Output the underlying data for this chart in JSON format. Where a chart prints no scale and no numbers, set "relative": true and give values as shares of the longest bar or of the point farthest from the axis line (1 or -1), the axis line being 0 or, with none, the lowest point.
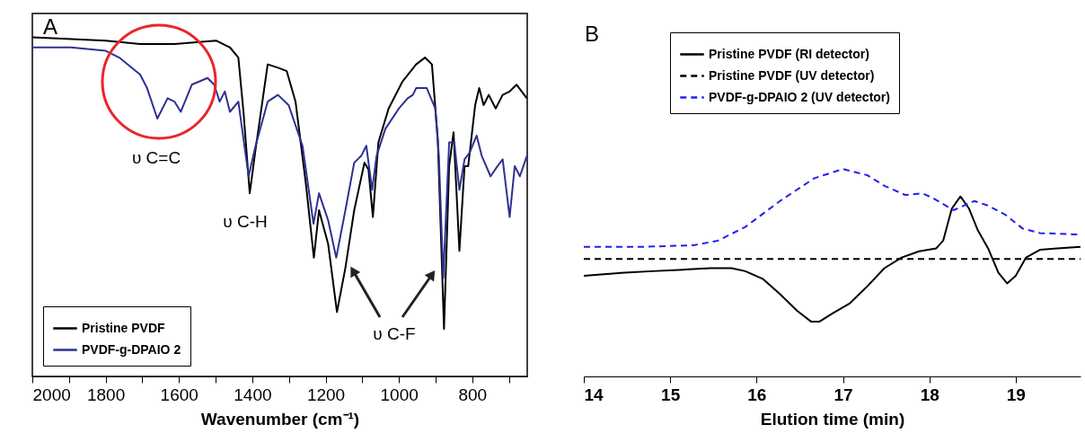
{
  "chart_data": [
    {
      "type": "line",
      "relative": true,
      "xlabel": "Wavenumber (cm⁻¹)",
      "xlim": [
        2000,
        650
      ],
      "xticks": [
        2000,
        {
          "value": 1900,
          "label": null
        },
        1800,
        {
          "value": 1700,
          "label": null
        },
        1600,
        {
          "value": 1500,
          "label": null
        },
        1400,
        {
          "value": 1300,
          "label": null
        },
        1200,
        {
          "value": 1100,
          "label": null
        },
        1000,
        {
          "value": 900,
          "label": null
        },
        800,
        {
          "value": 700,
          "label": null
        }
      ],
      "legend": "bottom left",
      "series": [
        {
          "name": "Pristine PVDF",
          "color": "#000000",
          "line_style": "solid",
          "x": [
            2000,
            1800,
            1706,
            1612,
            1499,
            1461,
            1438,
            1424,
            1407,
            1391,
            1358,
            1330,
            1306,
            1282,
            1254,
            1232,
            1218,
            1193,
            1169,
            1146,
            1122,
            1094,
            1083,
            1071,
            1056,
            1028,
            990,
            953,
            929,
            910,
            894,
            877,
            863,
            851,
            835,
            821,
            811,
            792,
            781,
            769,
            755,
            736,
            717,
            698,
            679,
            651
          ],
          "values": [
            1.0,
            0.99,
            0.98,
            0.98,
            0.99,
            0.97,
            0.94,
            0.78,
            0.54,
            0.67,
            0.92,
            0.91,
            0.9,
            0.81,
            0.57,
            0.35,
            0.49,
            0.39,
            0.19,
            0.32,
            0.49,
            0.63,
            0.61,
            0.47,
            0.69,
            0.79,
            0.87,
            0.92,
            0.94,
            0.92,
            0.7,
            0.14,
            0.62,
            0.72,
            0.37,
            0.62,
            0.62,
            0.8,
            0.85,
            0.8,
            0.83,
            0.79,
            0.83,
            0.84,
            0.86,
            0.82
          ]
        },
        {
          "name": "PVDF-g-DPAIO 2",
          "color": "#2e3192",
          "line_style": "solid",
          "x": [
            2000,
            1895,
            1800,
            1763,
            1706,
            1687,
            1659,
            1631,
            1612,
            1595,
            1565,
            1522,
            1504,
            1489,
            1475,
            1461,
            1438,
            1424,
            1410,
            1391,
            1358,
            1330,
            1301,
            1263,
            1233,
            1218,
            1193,
            1171,
            1146,
            1122,
            1103,
            1089,
            1073,
            1061,
            1037,
            1000,
            976,
            962,
            953,
            924,
            901,
            891,
            879,
            863,
            849,
            835,
            821,
            807,
            788,
            774,
            750,
            731,
            717,
            698,
            684,
            670,
            651
          ],
          "values": [
            0.97,
            0.97,
            0.96,
            0.94,
            0.89,
            0.85,
            0.76,
            0.82,
            0.81,
            0.78,
            0.86,
            0.88,
            0.86,
            0.81,
            0.84,
            0.78,
            0.81,
            0.7,
            0.59,
            0.68,
            0.81,
            0.83,
            0.8,
            0.68,
            0.45,
            0.54,
            0.46,
            0.35,
            0.49,
            0.63,
            0.65,
            0.68,
            0.55,
            0.65,
            0.73,
            0.79,
            0.82,
            0.83,
            0.85,
            0.85,
            0.79,
            0.65,
            0.29,
            0.69,
            0.69,
            0.55,
            0.64,
            0.66,
            0.71,
            0.65,
            0.59,
            0.62,
            0.64,
            0.47,
            0.62,
            0.59,
            0.65
          ]
        }
      ],
      "annotations": [
        "A",
        "υ C=C",
        "υ C-H",
        "υ C-F"
      ]
    },
    {
      "type": "line",
      "relative": true,
      "xlabel": "Elution time (min)",
      "xlim": [
        14,
        19.75
      ],
      "xticks": [
        14,
        15,
        16,
        17,
        18,
        19
      ],
      "legend": "top",
      "series": [
        {
          "name": "Pristine PVDF (RI detector)",
          "color": "#000000",
          "line_style": "solid",
          "x": [
            14,
            14.47,
            14.79,
            15.15,
            15.47,
            15.71,
            15.87,
            16.07,
            16.27,
            16.47,
            16.63,
            16.73,
            16.87,
            17.08,
            17.28,
            17.48,
            17.68,
            17.88,
            18.08,
            18.16,
            18.26,
            18.36,
            18.46,
            18.56,
            18.68,
            18.8,
            18.9,
            19.0,
            19.12,
            19.28,
            19.48,
            19.75
          ],
          "values": [
            0.3,
            0.32,
            0.33,
            0.34,
            0.35,
            0.35,
            0.33,
            0.28,
            0.18,
            0.07,
            0.0,
            0.0,
            0.05,
            0.12,
            0.23,
            0.35,
            0.42,
            0.46,
            0.48,
            0.53,
            0.74,
            0.82,
            0.74,
            0.6,
            0.48,
            0.32,
            0.25,
            0.3,
            0.42,
            0.47,
            0.48,
            0.49
          ]
        },
        {
          "name": "Pristine PVDF (UV detector)",
          "color": "#000000",
          "line_style": "dashed",
          "x": [
            14,
            19.75
          ],
          "values": [
            0.41,
            0.41
          ]
        },
        {
          "name": "PVDF-g-DPAIO 2 (UV detector)",
          "color": "#2020f0",
          "line_style": "dashed",
          "x": [
            14,
            14.67,
            15.27,
            15.55,
            15.87,
            16.27,
            16.67,
            17.0,
            17.28,
            17.48,
            17.72,
            17.92,
            18.04,
            18.28,
            18.52,
            18.68,
            18.88,
            19.08,
            19.28,
            19.75
          ],
          "values": [
            0.49,
            0.49,
            0.5,
            0.53,
            0.62,
            0.79,
            0.94,
            1.0,
            0.96,
            0.89,
            0.83,
            0.84,
            0.81,
            0.73,
            0.79,
            0.76,
            0.7,
            0.61,
            0.58,
            0.57
          ]
        }
      ],
      "annotations": [
        "B"
      ]
    }
  ]
}
